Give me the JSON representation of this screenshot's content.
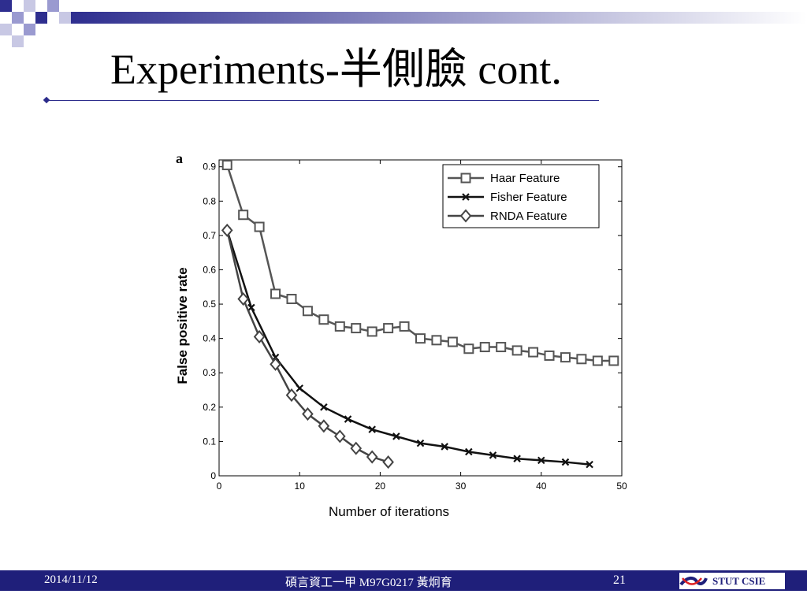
{
  "slide": {
    "title": "Experiments-半側臉  cont.",
    "colors": {
      "accent": "#1f1f7a",
      "corner_square": "#2e2e8f"
    }
  },
  "footer": {
    "date": "2014/11/12",
    "center": "碩言資工一甲 M97G0217 黃炯育",
    "page": "21",
    "logo_text": "STUT CSIE"
  },
  "chart_data": {
    "type": "line",
    "panel_label": "a",
    "title": "",
    "xlabel": "Number of iterations",
    "ylabel": "False positive rate",
    "xlim": [
      0,
      50
    ],
    "ylim": [
      0,
      0.92
    ],
    "xticks": [
      0,
      10,
      20,
      30,
      40,
      50
    ],
    "yticks": [
      0,
      0.1,
      0.2,
      0.3,
      0.4,
      0.5,
      0.6,
      0.7,
      0.8,
      0.9
    ],
    "grid": false,
    "legend_position": "top-right",
    "series": [
      {
        "name": "Haar Feature",
        "marker": "square",
        "color": "#555555",
        "x": [
          1,
          3,
          5,
          7,
          9,
          11,
          13,
          15,
          17,
          19,
          21,
          23,
          25,
          27,
          29,
          31,
          33,
          35,
          37,
          39,
          41,
          43,
          45,
          47,
          49
        ],
        "y": [
          0.905,
          0.76,
          0.725,
          0.53,
          0.515,
          0.48,
          0.455,
          0.435,
          0.43,
          0.42,
          0.43,
          0.435,
          0.4,
          0.395,
          0.39,
          0.37,
          0.375,
          0.375,
          0.365,
          0.36,
          0.35,
          0.345,
          0.34,
          0.335,
          0.335
        ]
      },
      {
        "name": "Fisher Feature",
        "marker": "x",
        "color": "#111111",
        "x": [
          1,
          4,
          7,
          10,
          13,
          16,
          19,
          22,
          25,
          28,
          31,
          34,
          37,
          40,
          43,
          46
        ],
        "y": [
          0.715,
          0.49,
          0.345,
          0.255,
          0.2,
          0.165,
          0.135,
          0.115,
          0.095,
          0.085,
          0.07,
          0.06,
          0.05,
          0.045,
          0.04,
          0.033
        ]
      },
      {
        "name": "RNDA Feature",
        "marker": "diamond",
        "color": "#444444",
        "x": [
          1,
          3,
          5,
          7,
          9,
          11,
          13,
          15,
          17,
          19,
          21
        ],
        "y": [
          0.715,
          0.515,
          0.405,
          0.325,
          0.235,
          0.18,
          0.145,
          0.115,
          0.08,
          0.055,
          0.04
        ]
      }
    ]
  }
}
